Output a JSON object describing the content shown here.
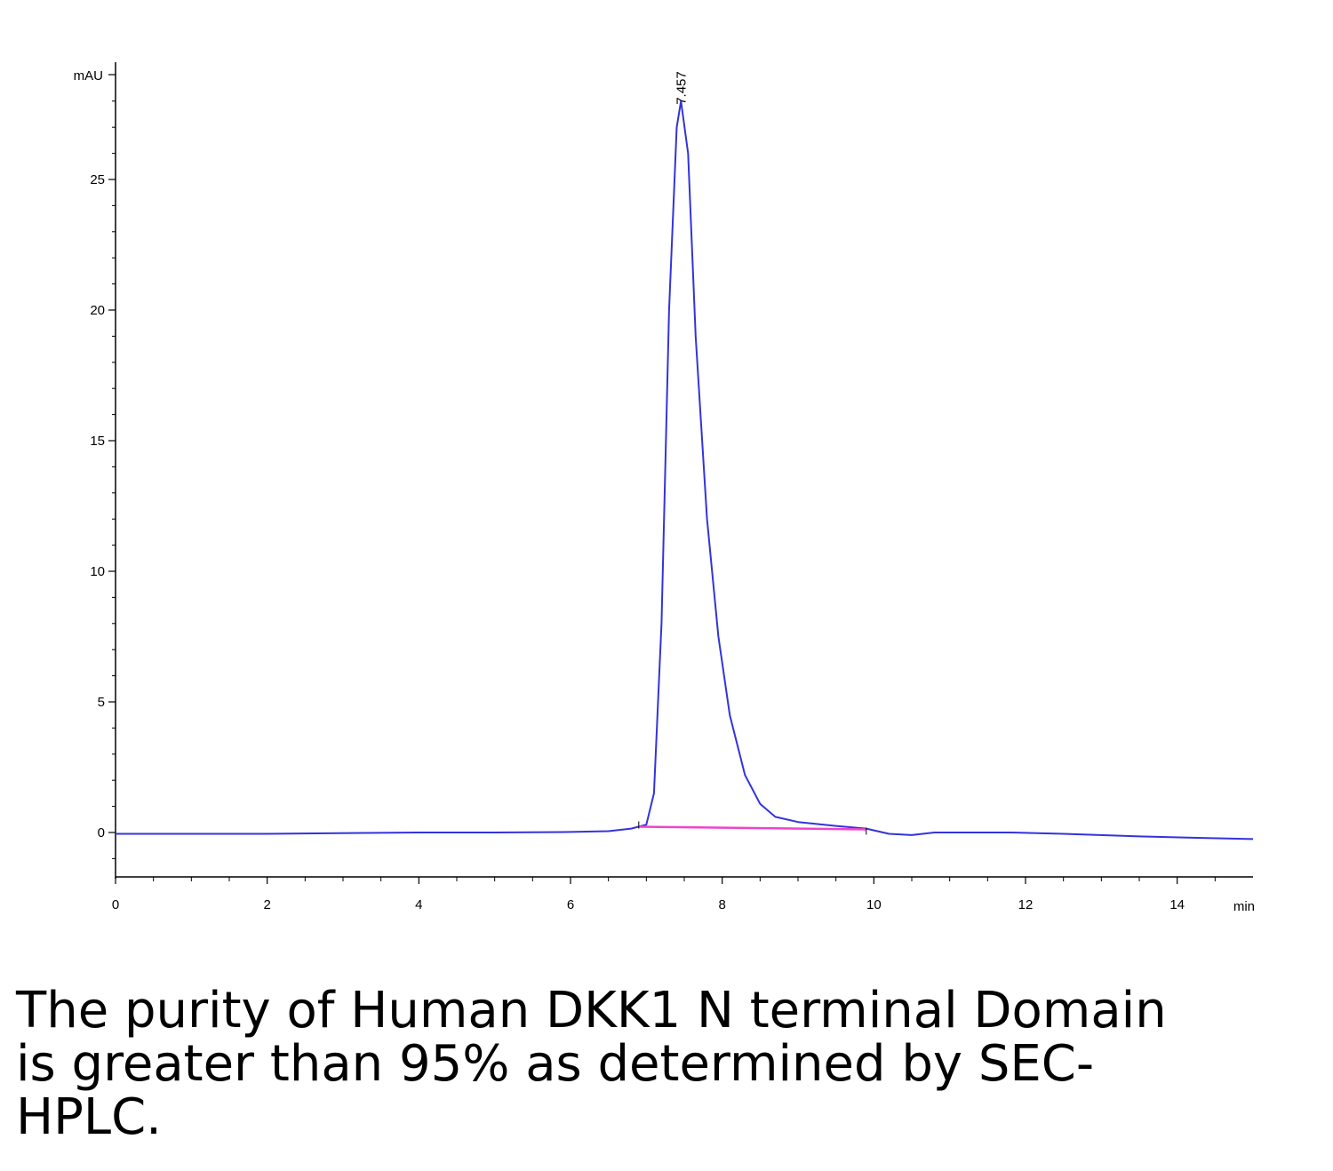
{
  "chart_data": {
    "type": "line",
    "title": "",
    "xlabel": "min",
    "ylabel": "mAU",
    "xlim": [
      0,
      15
    ],
    "ylim": [
      -1.7,
      29
    ],
    "x_ticks": [
      0,
      2,
      4,
      6,
      8,
      10,
      12,
      14
    ],
    "y_ticks": [
      0,
      5,
      10,
      15,
      20,
      25
    ],
    "grid": false,
    "series": [
      {
        "color": "#3333dd",
        "x": [
          0,
          2,
          4,
          5,
          6,
          6.5,
          6.8,
          7.0,
          7.1,
          7.2,
          7.3,
          7.4,
          7.457,
          7.55,
          7.65,
          7.8,
          7.95,
          8.1,
          8.3,
          8.5,
          8.7,
          9.0,
          9.5,
          9.9,
          10.2,
          10.5,
          10.8,
          11.2,
          11.8,
          12.5,
          13.5,
          14.2,
          15
        ],
        "y": [
          -0.05,
          -0.05,
          0,
          0,
          0.02,
          0.05,
          0.15,
          0.3,
          1.5,
          8,
          20,
          27,
          28,
          26,
          19,
          12,
          7.5,
          4.5,
          2.2,
          1.1,
          0.6,
          0.4,
          0.25,
          0.15,
          -0.05,
          -0.1,
          0.0,
          0.0,
          0.0,
          -0.05,
          -0.15,
          -0.2,
          -0.25
        ]
      },
      {
        "color": "#ee44cc",
        "x": [
          6.9,
          9.9
        ],
        "y": [
          0.22,
          0.12
        ]
      }
    ],
    "annotations": [
      {
        "text": "7.457",
        "x": 7.457,
        "y": 28
      }
    ]
  },
  "caption": "The purity of Human DKK1 N terminal Domain is greater than 95% as determined by SEC-HPLC."
}
